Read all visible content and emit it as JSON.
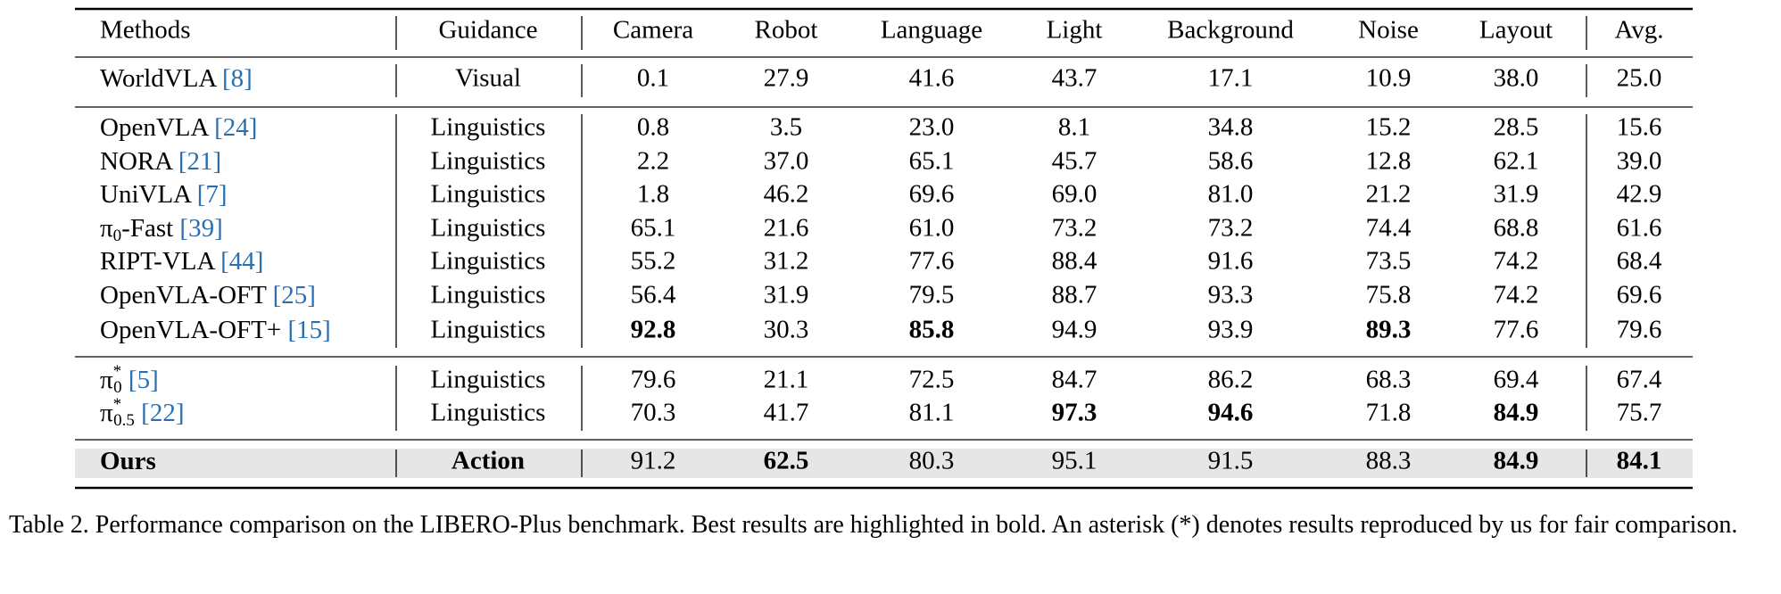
{
  "table": {
    "columns": [
      "Methods",
      "Guidance",
      "Camera",
      "Robot",
      "Language",
      "Light",
      "Background",
      "Noise",
      "Layout",
      "Avg."
    ],
    "groups": [
      [
        {
          "method": {
            "name": "WorldVLA",
            "ref": "[8]"
          },
          "guidance": "Visual",
          "values": [
            "0.1",
            "27.9",
            "41.6",
            "43.7",
            "17.1",
            "10.9",
            "38.0",
            "25.0"
          ],
          "bold": []
        }
      ],
      [
        {
          "method": {
            "name": "OpenVLA",
            "ref": "[24]"
          },
          "guidance": "Linguistics",
          "values": [
            "0.8",
            "3.5",
            "23.0",
            "8.1",
            "34.8",
            "15.2",
            "28.5",
            "15.6"
          ],
          "bold": []
        },
        {
          "method": {
            "name": "NORA",
            "ref": "[21]"
          },
          "guidance": "Linguistics",
          "values": [
            "2.2",
            "37.0",
            "65.1",
            "45.7",
            "58.6",
            "12.8",
            "62.1",
            "39.0"
          ],
          "bold": []
        },
        {
          "method": {
            "name": "UniVLA",
            "ref": "[7]"
          },
          "guidance": "Linguistics",
          "values": [
            "1.8",
            "46.2",
            "69.6",
            "69.0",
            "81.0",
            "21.2",
            "31.9",
            "42.9"
          ],
          "bold": []
        },
        {
          "method": {
            "name": "π",
            "sub": "0",
            "suffix": "-Fast",
            "ref": "[39]"
          },
          "guidance": "Linguistics",
          "values": [
            "65.1",
            "21.6",
            "61.0",
            "73.2",
            "73.2",
            "74.4",
            "68.8",
            "61.6"
          ],
          "bold": []
        },
        {
          "method": {
            "name": "RIPT-VLA",
            "ref": "[44]"
          },
          "guidance": "Linguistics",
          "values": [
            "55.2",
            "31.2",
            "77.6",
            "88.4",
            "91.6",
            "73.5",
            "74.2",
            "68.4"
          ],
          "bold": []
        },
        {
          "method": {
            "name": "OpenVLA-OFT",
            "ref": "[25]"
          },
          "guidance": "Linguistics",
          "values": [
            "56.4",
            "31.9",
            "79.5",
            "88.7",
            "93.3",
            "75.8",
            "74.2",
            "69.6"
          ],
          "bold": []
        },
        {
          "method": {
            "name": "OpenVLA-OFT+",
            "ref": "[15]"
          },
          "guidance": "Linguistics",
          "values": [
            "92.8",
            "30.3",
            "85.8",
            "94.9",
            "93.9",
            "89.3",
            "77.6",
            "79.6"
          ],
          "bold": [
            0,
            2,
            5
          ]
        }
      ],
      [
        {
          "method": {
            "name": "π",
            "sup": "*",
            "sub": "0",
            "ref": "[5]"
          },
          "guidance": "Linguistics",
          "values": [
            "79.6",
            "21.1",
            "72.5",
            "84.7",
            "86.2",
            "68.3",
            "69.4",
            "67.4"
          ],
          "bold": []
        },
        {
          "method": {
            "name": "π",
            "sup": "*",
            "sub": "0.5",
            "ref": "[22]"
          },
          "guidance": "Linguistics",
          "values": [
            "70.3",
            "41.7",
            "81.1",
            "97.3",
            "94.6",
            "71.8",
            "84.9",
            "75.7"
          ],
          "bold": [
            3,
            4,
            6
          ]
        }
      ],
      [
        {
          "method": {
            "name": "Ours"
          },
          "guidance": "Action",
          "values": [
            "91.2",
            "62.5",
            "80.3",
            "95.1",
            "91.5",
            "88.3",
            "84.9",
            "84.1"
          ],
          "bold": [
            1,
            6,
            7
          ],
          "highlight": true
        }
      ]
    ],
    "caption": "Table 2. Performance comparison on the LIBERO-Plus benchmark. Best results are highlighted in bold. An asterisk (*) denotes results reproduced by us for fair comparison."
  }
}
